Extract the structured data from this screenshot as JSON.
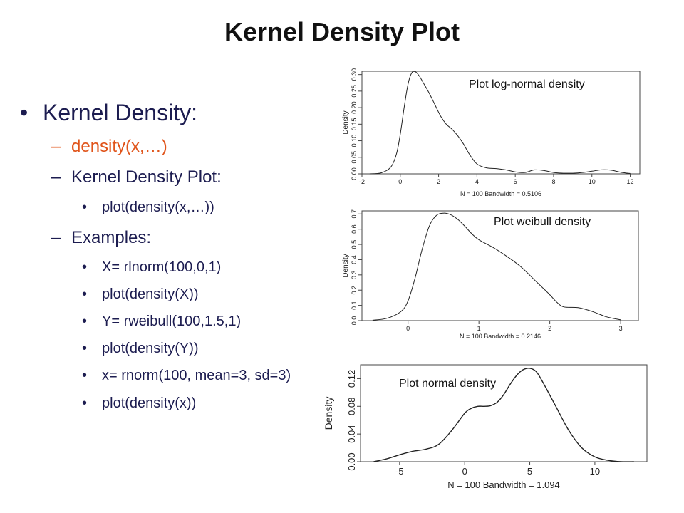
{
  "slide": {
    "title": "Kernel Density Plot",
    "bullets": [
      {
        "level": 1,
        "marker": "•",
        "text": "Kernel Density:",
        "accent": false
      },
      {
        "level": 2,
        "marker": "–",
        "text": "density(x,…)",
        "accent": true
      },
      {
        "level": 2,
        "marker": "–",
        "text": "Kernel Density Plot:",
        "accent": false
      },
      {
        "level": 3,
        "marker": "•",
        "text": "plot(density(x,…))",
        "accent": false
      },
      {
        "level": 2,
        "marker": "–",
        "text": "Examples:",
        "accent": false
      },
      {
        "level": 3,
        "marker": "•",
        "text": "X= rlnorm(100,0,1)",
        "accent": false
      },
      {
        "level": 3,
        "marker": "•",
        "text": "plot(density(X))",
        "accent": false
      },
      {
        "level": 3,
        "marker": "•",
        "text": "Y= rweibull(100,1.5,1)",
        "accent": false
      },
      {
        "level": 3,
        "marker": "•",
        "text": "plot(density(Y))",
        "accent": false
      },
      {
        "level": 3,
        "marker": "•",
        "text": " x= rnorm(100, mean=3, sd=3)",
        "accent": false
      },
      {
        "level": 3,
        "marker": "•",
        "text": " plot(density(x))",
        "accent": false
      }
    ],
    "accent_color": "#e0541a",
    "text_color": "#1c1c50"
  },
  "chart_data": [
    {
      "type": "line",
      "caption": "Plot log-normal density",
      "ylabel": "Density",
      "subtitle": "N = 100   Bandwidth = 0.5106",
      "xlim": [
        -2,
        12.5
      ],
      "ylim": [
        0,
        0.31
      ],
      "xticks": [
        -2,
        0,
        2,
        4,
        6,
        8,
        10,
        12
      ],
      "yticks": [
        0.0,
        0.05,
        0.1,
        0.15,
        0.2,
        0.25,
        0.3
      ],
      "ytick_labels": [
        "0.00",
        "0.05",
        "0.10",
        "0.15",
        "0.20",
        "0.25",
        "0.30"
      ],
      "x": [
        -1.6,
        -1.0,
        -0.5,
        -0.2,
        0.0,
        0.2,
        0.4,
        0.6,
        0.8,
        1.0,
        1.2,
        1.5,
        1.8,
        2.1,
        2.4,
        2.7,
        3.0,
        3.3,
        3.6,
        4.0,
        4.5,
        5.0,
        5.5,
        6.0,
        6.5,
        7.0,
        7.5,
        8.0,
        8.5,
        9.0,
        9.5,
        10.0,
        10.5,
        11.0,
        11.5,
        12.0
      ],
      "y": [
        0.0,
        0.003,
        0.02,
        0.06,
        0.12,
        0.2,
        0.27,
        0.305,
        0.308,
        0.295,
        0.275,
        0.245,
        0.21,
        0.175,
        0.15,
        0.135,
        0.115,
        0.09,
        0.06,
        0.03,
        0.018,
        0.016,
        0.012,
        0.006,
        0.004,
        0.012,
        0.01,
        0.004,
        0.002,
        0.002,
        0.004,
        0.008,
        0.012,
        0.011,
        0.005,
        0.001
      ]
    },
    {
      "type": "line",
      "caption": "Plot weibull density",
      "ylabel": "Density",
      "subtitle": "N = 100   Bandwidth = 0.2146",
      "xlim": [
        -0.65,
        3.25
      ],
      "ylim": [
        0,
        0.72
      ],
      "xticks": [
        0,
        1,
        2,
        3
      ],
      "yticks": [
        0.0,
        0.1,
        0.2,
        0.3,
        0.4,
        0.5,
        0.6,
        0.7
      ],
      "ytick_labels": [
        "0.0",
        "0.1",
        "0.2",
        "0.3",
        "0.4",
        "0.5",
        "0.6",
        "0.7"
      ],
      "x": [
        -0.5,
        -0.3,
        -0.1,
        0.0,
        0.1,
        0.2,
        0.3,
        0.4,
        0.5,
        0.6,
        0.7,
        0.8,
        0.9,
        1.0,
        1.2,
        1.4,
        1.6,
        1.8,
        2.0,
        2.1,
        2.2,
        2.4,
        2.6,
        2.8,
        3.0
      ],
      "y": [
        0.003,
        0.015,
        0.06,
        0.13,
        0.28,
        0.47,
        0.62,
        0.69,
        0.705,
        0.695,
        0.665,
        0.62,
        0.57,
        0.53,
        0.48,
        0.42,
        0.35,
        0.26,
        0.17,
        0.12,
        0.09,
        0.085,
        0.06,
        0.025,
        0.005
      ]
    },
    {
      "type": "line",
      "caption": "Plot normal density",
      "ylabel": "Density",
      "subtitle": "N = 100   Bandwidth = 1.094",
      "xlim": [
        -8,
        14
      ],
      "ylim": [
        0,
        0.14
      ],
      "xticks": [
        -5,
        0,
        5,
        10
      ],
      "yticks": [
        0.0,
        0.04,
        0.08,
        0.12
      ],
      "ytick_labels": [
        "0.00",
        "0.04",
        "0.08",
        "0.12"
      ],
      "x": [
        -7,
        -6,
        -5,
        -4,
        -3,
        -2,
        -1,
        0,
        0.5,
        1,
        1.5,
        2,
        2.5,
        3,
        3.5,
        4,
        4.5,
        5,
        5.5,
        6,
        7,
        8,
        9,
        10,
        11,
        12,
        13
      ],
      "y": [
        0.0,
        0.004,
        0.01,
        0.015,
        0.018,
        0.025,
        0.045,
        0.07,
        0.077,
        0.08,
        0.08,
        0.081,
        0.086,
        0.097,
        0.112,
        0.125,
        0.133,
        0.135,
        0.13,
        0.115,
        0.08,
        0.045,
        0.02,
        0.007,
        0.002,
        0.0,
        0.0
      ]
    }
  ]
}
